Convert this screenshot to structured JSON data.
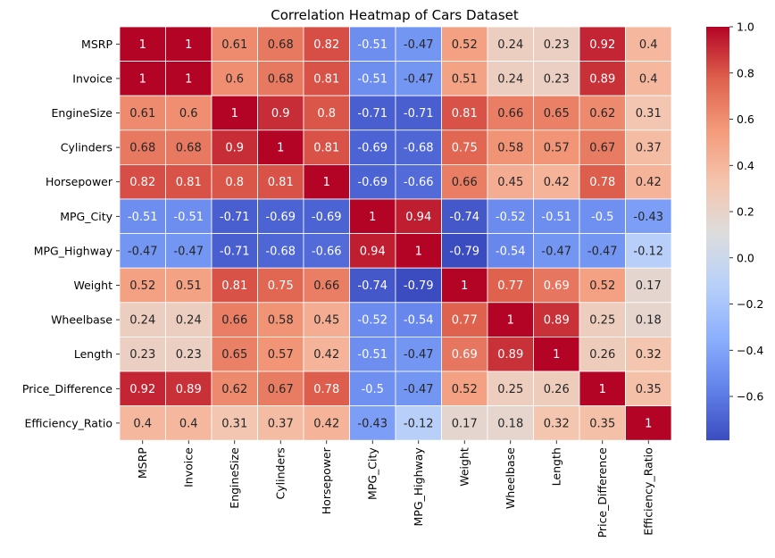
{
  "chart_data": {
    "type": "heatmap",
    "title": "Correlation Heatmap of Cars Dataset",
    "xlabel": "",
    "ylabel": "",
    "colormap": "coolwarm",
    "vmin": -0.79,
    "vmax": 1.0,
    "grid": true,
    "legend": "colorbar-right",
    "colorbar_ticks": [
      1.0,
      0.8,
      0.6,
      0.4,
      0.2,
      0.0,
      -0.2,
      -0.4,
      -0.6
    ],
    "colorbar_tick_labels": [
      "1.0",
      "0.8",
      "0.6",
      "0.4",
      "0.2",
      "0.0",
      "−0.2",
      "−0.4",
      "−0.6"
    ],
    "rows": [
      "MSRP",
      "Invoice",
      "EngineSize",
      "Cylinders",
      "Horsepower",
      "MPG_City",
      "MPG_Highway",
      "Weight",
      "Wheelbase",
      "Length",
      "Price_Difference",
      "Efficiency_Ratio"
    ],
    "columns": [
      "MSRP",
      "Invoice",
      "EngineSize",
      "Cylinders",
      "Horsepower",
      "MPG_City",
      "MPG_Highway",
      "Weight",
      "Wheelbase",
      "Length",
      "Price_Difference",
      "Efficiency_Ratio"
    ],
    "values": [
      [
        1,
        1,
        0.61,
        0.68,
        0.82,
        -0.51,
        -0.47,
        0.52,
        0.24,
        0.23,
        0.92,
        0.4
      ],
      [
        1,
        1,
        0.6,
        0.68,
        0.81,
        -0.51,
        -0.47,
        0.51,
        0.24,
        0.23,
        0.89,
        0.4
      ],
      [
        0.61,
        0.6,
        1,
        0.9,
        0.8,
        -0.71,
        -0.71,
        0.81,
        0.66,
        0.65,
        0.62,
        0.31
      ],
      [
        0.68,
        0.68,
        0.9,
        1,
        0.81,
        -0.69,
        -0.68,
        0.75,
        0.58,
        0.57,
        0.67,
        0.37
      ],
      [
        0.82,
        0.81,
        0.8,
        0.81,
        1,
        -0.69,
        -0.66,
        0.66,
        0.45,
        0.42,
        0.78,
        0.42
      ],
      [
        -0.51,
        -0.51,
        -0.71,
        -0.69,
        -0.69,
        1,
        0.94,
        -0.74,
        -0.52,
        -0.51,
        -0.5,
        -0.43
      ],
      [
        -0.47,
        -0.47,
        -0.71,
        -0.68,
        -0.66,
        0.94,
        1,
        -0.79,
        -0.54,
        -0.47,
        -0.47,
        -0.12
      ],
      [
        0.52,
        0.51,
        0.81,
        0.75,
        0.66,
        -0.74,
        -0.79,
        1,
        0.77,
        0.69,
        0.52,
        0.17
      ],
      [
        0.24,
        0.24,
        0.66,
        0.58,
        0.45,
        -0.52,
        -0.54,
        0.77,
        1,
        0.89,
        0.25,
        0.18
      ],
      [
        0.23,
        0.23,
        0.65,
        0.57,
        0.42,
        -0.51,
        -0.47,
        0.69,
        0.89,
        1,
        0.26,
        0.32
      ],
      [
        0.92,
        0.89,
        0.62,
        0.67,
        0.78,
        -0.5,
        -0.47,
        0.52,
        0.25,
        0.26,
        1,
        0.35
      ],
      [
        0.4,
        0.4,
        0.31,
        0.37,
        0.42,
        -0.43,
        -0.12,
        0.17,
        0.18,
        0.32,
        0.35,
        1
      ]
    ]
  }
}
